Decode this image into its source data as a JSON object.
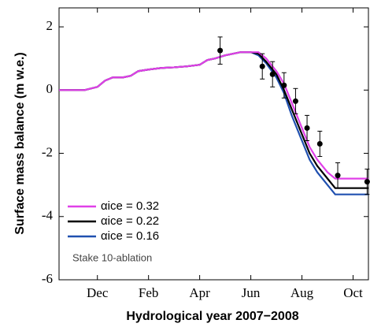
{
  "chart_data": {
    "type": "line",
    "xlabel": "Hydrological year 2007−2008",
    "ylabel": "Surface mass balance (m w.e.)",
    "annotation": "Stake  10-ablation",
    "xlim": [
      0.5,
      12.6
    ],
    "ylim": [
      -6,
      2.6
    ],
    "xticks": [
      {
        "value": 2,
        "label": "Dec"
      },
      {
        "value": 4,
        "label": "Feb"
      },
      {
        "value": 6,
        "label": "Apr"
      },
      {
        "value": 8,
        "label": "Jun"
      },
      {
        "value": 10,
        "label": "Aug"
      },
      {
        "value": 12,
        "label": "Oct"
      }
    ],
    "yticks": [
      -6,
      -4,
      -2,
      0,
      2
    ],
    "legend": "lower left",
    "x": [
      0.5,
      1.0,
      1.5,
      2.0,
      2.3,
      2.6,
      3.0,
      3.3,
      3.6,
      4.0,
      4.5,
      5.0,
      5.5,
      6.0,
      6.3,
      6.6,
      7.0,
      7.3,
      7.6,
      8.0,
      8.3,
      8.6,
      9.0,
      9.3,
      9.6,
      10.0,
      10.3,
      10.6,
      11.0,
      11.3,
      12.0,
      12.6
    ],
    "series": [
      {
        "name": "αice = 0.32",
        "color": "#e040e8",
        "values": [
          0,
          0,
          0,
          0.1,
          0.3,
          0.4,
          0.4,
          0.45,
          0.6,
          0.65,
          0.7,
          0.72,
          0.75,
          0.8,
          0.95,
          1.0,
          1.1,
          1.15,
          1.2,
          1.2,
          1.2,
          1.0,
          0.6,
          0.2,
          -0.4,
          -1.2,
          -1.8,
          -2.2,
          -2.6,
          -2.8,
          -2.8,
          -2.8
        ]
      },
      {
        "name": "αice = 0.22",
        "color": "#000000",
        "values": [
          0,
          0,
          0,
          0.1,
          0.3,
          0.4,
          0.4,
          0.45,
          0.6,
          0.65,
          0.7,
          0.72,
          0.75,
          0.8,
          0.95,
          1.0,
          1.1,
          1.15,
          1.2,
          1.2,
          1.15,
          0.9,
          0.5,
          0.0,
          -0.6,
          -1.4,
          -2.0,
          -2.4,
          -2.8,
          -3.1,
          -3.1,
          -3.1
        ]
      },
      {
        "name": "αice = 0.16",
        "color": "#2050b0",
        "values": [
          0,
          0,
          0,
          0.1,
          0.3,
          0.4,
          0.4,
          0.45,
          0.6,
          0.65,
          0.7,
          0.72,
          0.75,
          0.8,
          0.95,
          1.0,
          1.1,
          1.15,
          1.2,
          1.2,
          1.1,
          0.85,
          0.4,
          -0.1,
          -0.8,
          -1.6,
          -2.2,
          -2.6,
          -3.0,
          -3.3,
          -3.3,
          -3.3
        ]
      }
    ],
    "observations": {
      "color": "#000000",
      "x": [
        6.8,
        8.45,
        8.85,
        9.3,
        9.75,
        10.2,
        10.7,
        11.4,
        12.55
      ],
      "values": [
        1.25,
        0.75,
        0.5,
        0.15,
        -0.35,
        -1.2,
        -1.7,
        -2.7,
        -2.9
      ],
      "errors": [
        0.43,
        0.4,
        0.4,
        0.4,
        0.4,
        0.4,
        0.4,
        0.4,
        0.4
      ]
    }
  }
}
